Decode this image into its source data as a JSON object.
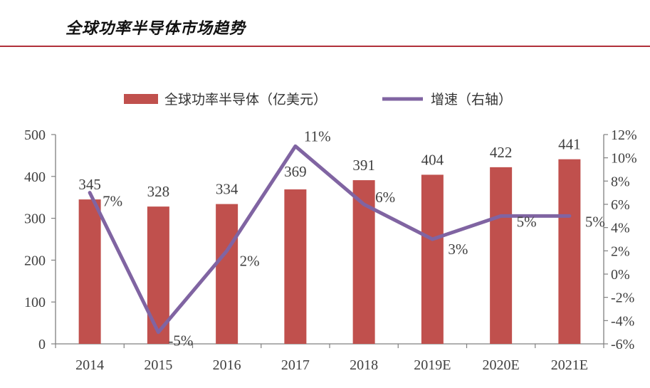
{
  "page_title": "全球功率半导体市场趋势",
  "chart_data": {
    "type": "bar",
    "categories": [
      "2014",
      "2015",
      "2016",
      "2017",
      "2018",
      "2019E",
      "2020E",
      "2021E"
    ],
    "series": [
      {
        "name": "全球功率半导体（亿美元）",
        "type": "bar",
        "axis": "left",
        "values": [
          345,
          328,
          334,
          369,
          391,
          404,
          422,
          441
        ],
        "labels": [
          "345",
          "328",
          "334",
          "369",
          "391",
          "404",
          "422",
          "441"
        ],
        "color": "#c0504d"
      },
      {
        "name": "增速（右轴）",
        "type": "line",
        "axis": "right",
        "values": [
          7,
          -5,
          2,
          11,
          6,
          3,
          5,
          5
        ],
        "labels": [
          "7%",
          "-5%",
          "2%",
          "11%",
          "6%",
          "3%",
          "5%",
          "5%"
        ],
        "color": "#8064a2"
      }
    ],
    "y_left": {
      "ylim": [
        0,
        500
      ],
      "ticks": [
        0,
        100,
        200,
        300,
        400,
        500
      ],
      "tick_labels": [
        "0",
        "100",
        "200",
        "300",
        "400",
        "500"
      ]
    },
    "y_right": {
      "ylim": [
        -6,
        12
      ],
      "ticks": [
        -6,
        -4,
        -2,
        0,
        2,
        4,
        6,
        8,
        10,
        12
      ],
      "tick_labels": [
        "-6%",
        "-4%",
        "-2%",
        "0%",
        "2%",
        "4%",
        "6%",
        "8%",
        "10%",
        "12%"
      ]
    },
    "legend": "top"
  }
}
